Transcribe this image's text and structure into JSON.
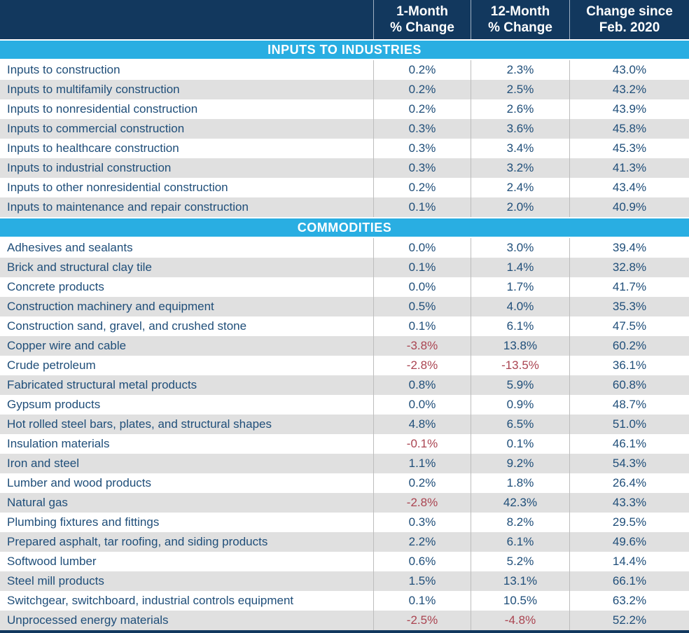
{
  "colors": {
    "header_navy": "#12385E",
    "section_cyan": "#29AEE2",
    "row_alt_gray": "#E0E0E0",
    "text_blue": "#1F4E79",
    "negative_red": "#AA4451",
    "separator_gray": "#BDBDBD"
  },
  "chart_data": {
    "type": "table",
    "header_cols": [
      {
        "line1": "",
        "line2": ""
      },
      {
        "line1": "1-Month",
        "line2": "% Change"
      },
      {
        "line1": "12-Month",
        "line2": "% Change"
      },
      {
        "line1": "Change since",
        "line2": "Feb. 2020"
      }
    ],
    "sections": [
      {
        "title": "INPUTS TO INDUSTRIES",
        "rows": [
          {
            "label": "Inputs to construction",
            "m1": "0.2%",
            "m12": "2.3%",
            "since": "43.0%"
          },
          {
            "label": "Inputs to multifamily construction",
            "m1": "0.2%",
            "m12": "2.5%",
            "since": "43.2%"
          },
          {
            "label": "Inputs to nonresidential construction",
            "m1": "0.2%",
            "m12": "2.6%",
            "since": "43.9%"
          },
          {
            "label": "Inputs to commercial construction",
            "m1": "0.3%",
            "m12": "3.6%",
            "since": "45.8%"
          },
          {
            "label": "Inputs to healthcare construction",
            "m1": "0.3%",
            "m12": "3.4%",
            "since": "45.3%"
          },
          {
            "label": "Inputs to industrial construction",
            "m1": "0.3%",
            "m12": "3.2%",
            "since": "41.3%"
          },
          {
            "label": "Inputs to other nonresidential construction",
            "m1": "0.2%",
            "m12": "2.4%",
            "since": "43.4%"
          },
          {
            "label": "Inputs to maintenance and repair construction",
            "m1": "0.1%",
            "m12": "2.0%",
            "since": "40.9%"
          }
        ]
      },
      {
        "title": "COMMODITIES",
        "rows": [
          {
            "label": "Adhesives and sealants",
            "m1": "0.0%",
            "m12": "3.0%",
            "since": "39.4%"
          },
          {
            "label": "Brick and structural clay tile",
            "m1": "0.1%",
            "m12": "1.4%",
            "since": "32.8%"
          },
          {
            "label": "Concrete products",
            "m1": "0.0%",
            "m12": "1.7%",
            "since": "41.7%"
          },
          {
            "label": "Construction machinery and equipment",
            "m1": "0.5%",
            "m12": "4.0%",
            "since": "35.3%"
          },
          {
            "label": "Construction sand, gravel, and crushed stone",
            "m1": "0.1%",
            "m12": "6.1%",
            "since": "47.5%"
          },
          {
            "label": "Copper wire and cable",
            "m1": "-3.8%",
            "m12": "13.8%",
            "since": "60.2%"
          },
          {
            "label": "Crude petroleum",
            "m1": "-2.8%",
            "m12": "-13.5%",
            "since": "36.1%"
          },
          {
            "label": "Fabricated structural metal products",
            "m1": "0.8%",
            "m12": "5.9%",
            "since": "60.8%"
          },
          {
            "label": "Gypsum products",
            "m1": "0.0%",
            "m12": "0.9%",
            "since": "48.7%"
          },
          {
            "label": "Hot rolled steel bars, plates, and structural shapes",
            "m1": "4.8%",
            "m12": "6.5%",
            "since": "51.0%"
          },
          {
            "label": "Insulation materials",
            "m1": "-0.1%",
            "m12": "0.1%",
            "since": "46.1%"
          },
          {
            "label": "Iron and steel",
            "m1": "1.1%",
            "m12": "9.2%",
            "since": "54.3%"
          },
          {
            "label": "Lumber and wood products",
            "m1": "0.2%",
            "m12": "1.8%",
            "since": "26.4%"
          },
          {
            "label": "Natural gas",
            "m1": "-2.8%",
            "m12": "42.3%",
            "since": "43.3%"
          },
          {
            "label": "Plumbing fixtures and fittings",
            "m1": "0.3%",
            "m12": "8.2%",
            "since": "29.5%"
          },
          {
            "label": "Prepared asphalt, tar roofing, and siding products",
            "m1": "2.2%",
            "m12": "6.1%",
            "since": "49.6%"
          },
          {
            "label": "Softwood lumber",
            "m1": "0.6%",
            "m12": "5.2%",
            "since": "14.4%"
          },
          {
            "label": "Steel mill products",
            "m1": "1.5%",
            "m12": "13.1%",
            "since": "66.1%"
          },
          {
            "label": "Switchgear, switchboard, industrial controls equipment",
            "m1": "0.1%",
            "m12": "10.5%",
            "since": "63.2%"
          },
          {
            "label": "Unprocessed energy materials",
            "m1": "-2.5%",
            "m12": "-4.8%",
            "since": "52.2%"
          }
        ]
      }
    ]
  }
}
